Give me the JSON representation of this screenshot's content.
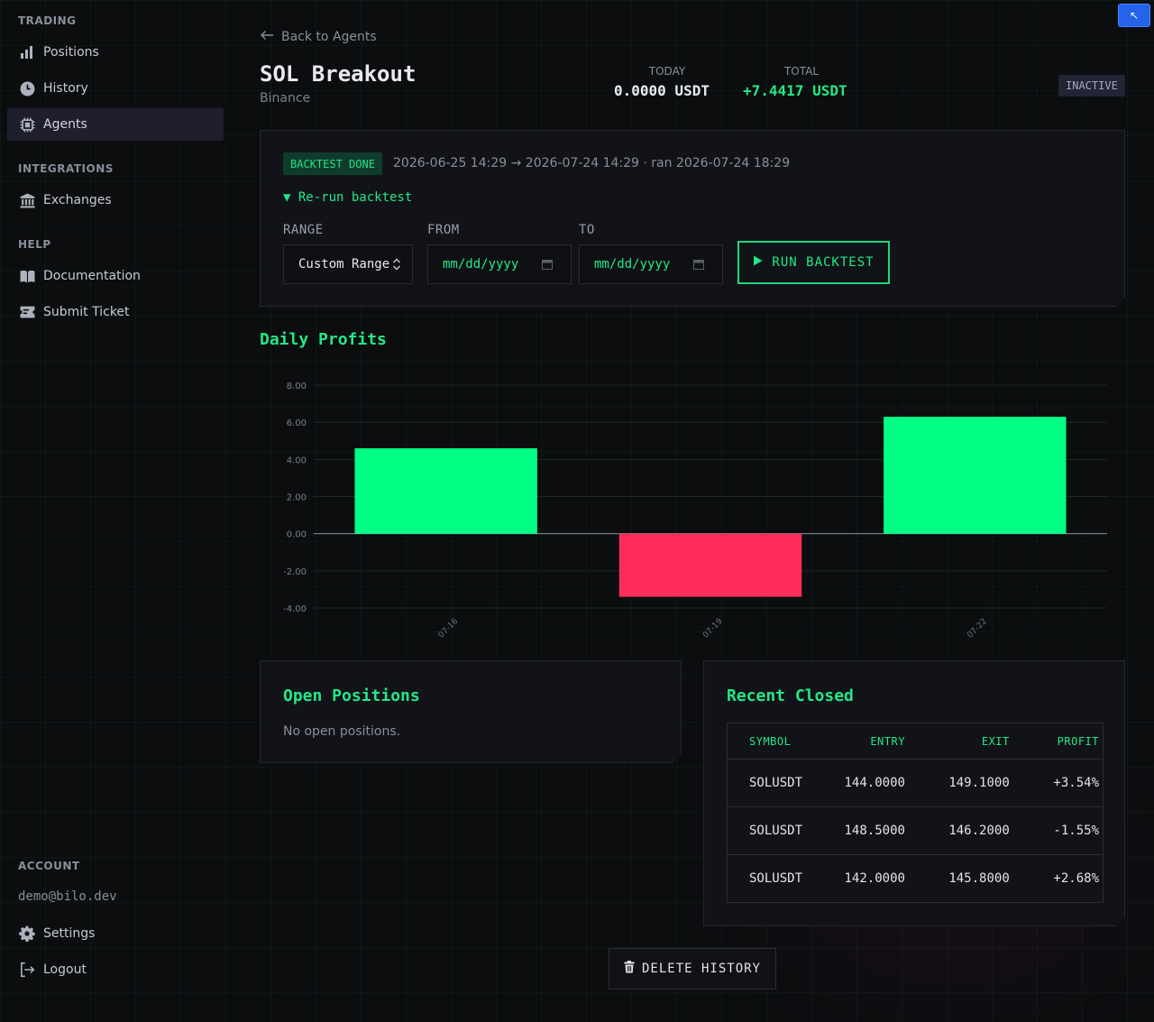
{
  "sidebar": {
    "sections": {
      "trading": "TRADING",
      "integrations": "INTEGRATIONS",
      "help": "HELP",
      "account": "ACCOUNT"
    },
    "items": {
      "positions": "Positions",
      "history": "History",
      "agents": "Agents",
      "exchanges": "Exchanges",
      "documentation": "Documentation",
      "submit_ticket": "Submit Ticket",
      "settings": "Settings",
      "logout": "Logout"
    },
    "active_item": "Agents",
    "email": "demo@bilo.dev"
  },
  "corner_button": {
    "icon": "arrow-up-left-icon",
    "glyph": "↖"
  },
  "header": {
    "back_label": "Back to Agents",
    "title": "SOL Breakout",
    "exchange": "Binance",
    "today_label": "TODAY",
    "today_value": "0.0000 USDT",
    "total_label": "TOTAL",
    "total_value": "+7.4417 USDT",
    "status": "INACTIVE"
  },
  "backtest": {
    "badge": "BACKTEST DONE",
    "range_text": "2026-06-25 14:29 → 2026-07-24 14:29 · ran 2026-07-24 18:29",
    "rerun_label": "▼ Re-run backtest",
    "range_label": "RANGE",
    "range_value": "Custom Range",
    "from_label": "FROM",
    "from_placeholder": "mm/dd/yyyy",
    "to_label": "TO",
    "to_placeholder": "mm/dd/yyyy",
    "run_label": "RUN BACKTEST"
  },
  "daily_profits": {
    "title": "Daily Profits"
  },
  "chart_data": {
    "type": "bar",
    "categories": [
      "07-16",
      "07-19",
      "07-22"
    ],
    "values": [
      4.6,
      -3.4,
      6.3
    ],
    "title": "Daily Profits",
    "xlabel": "",
    "ylabel": "",
    "ylim": [
      -4,
      8
    ],
    "yticks": [
      "8.00",
      "6.00",
      "4.00",
      "2.00",
      "0.00",
      "-2.00",
      "-4.00"
    ],
    "grid": true,
    "colors": {
      "positive": "#00ff85",
      "negative": "#ff2d5a"
    }
  },
  "open_positions": {
    "title": "Open Positions",
    "empty_text": "No open positions."
  },
  "recent_closed": {
    "title": "Recent Closed",
    "columns": [
      "SYMBOL",
      "ENTRY",
      "EXIT",
      "PROFIT"
    ],
    "rows": [
      {
        "symbol": "SOLUSDT",
        "entry": "144.0000",
        "exit": "149.1000",
        "profit": "+3.54%"
      },
      {
        "symbol": "SOLUSDT",
        "entry": "148.5000",
        "exit": "146.2000",
        "profit": "-1.55%"
      },
      {
        "symbol": "SOLUSDT",
        "entry": "142.0000",
        "exit": "145.8000",
        "profit": "+2.68%"
      }
    ]
  },
  "delete_label": "DELETE HISTORY",
  "colors": {
    "accent": "#22e887",
    "negative": "#ff3366",
    "corner_button": "#2563eb"
  }
}
